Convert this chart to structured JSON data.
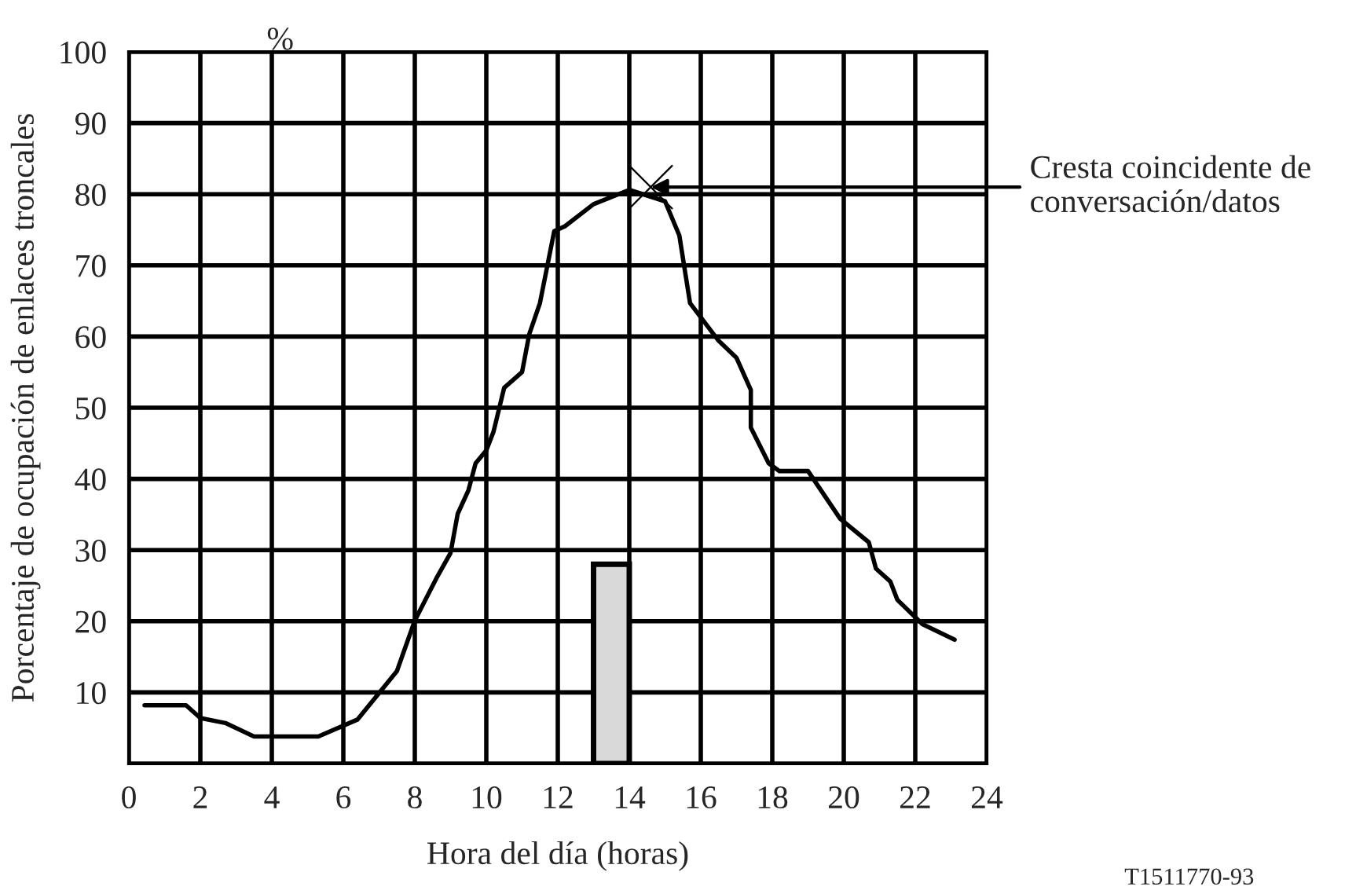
{
  "chart_data": {
    "type": "line",
    "xlabel": "Hora del día (horas)",
    "ylabel": "Porcentaje de ocupación de enlaces troncales",
    "xlim": [
      0,
      24
    ],
    "xticks": [
      0,
      2,
      4,
      6,
      8,
      10,
      12,
      14,
      16,
      18,
      20,
      22,
      24
    ],
    "ylim": [
      0,
      100
    ],
    "yticks": [
      {
        "value": 0,
        "label": null
      },
      10,
      20,
      30,
      40,
      50,
      60,
      70,
      80,
      90,
      100
    ],
    "grid": true,
    "series": [
      {
        "type": "bar",
        "color": "#d9d9d9",
        "x": [
          13.5
        ],
        "values": [
          28
        ]
      },
      {
        "color": "#000000",
        "x": [
          0.44,
          1.6,
          2.0,
          2.7,
          3.5,
          5.3,
          6.4,
          7.5,
          8.0,
          8.6,
          9.0,
          9.2,
          9.5,
          9.7,
          10.0,
          10.2,
          10.5,
          11.0,
          11.2,
          11.5,
          11.9,
          12.2,
          13.0,
          14.0,
          15.0,
          15.4,
          15.7,
          16.5,
          17.0,
          17.4,
          17.4,
          17.9,
          18.2,
          19.0,
          19.9,
          20.7,
          20.9,
          21.3,
          21.5,
          22.2,
          23.1
        ],
        "values": [
          8.2,
          8.2,
          6.4,
          5.7,
          3.8,
          3.8,
          6.2,
          13.0,
          20.1,
          26.0,
          29.6,
          35.1,
          38.4,
          42.2,
          44.0,
          46.6,
          52.8,
          55.0,
          60.3,
          64.7,
          74.8,
          75.5,
          78.6,
          80.6,
          79.0,
          74.2,
          64.7,
          59.4,
          57.0,
          52.5,
          47.2,
          42.2,
          41.1,
          41.1,
          34.4,
          31.1,
          27.4,
          25.6,
          23.0,
          19.6,
          17.4
        ]
      }
    ],
    "annotations": [
      {
        "text": "Cresta coincidente de\nconversación/datos",
        "x": 14.6,
        "y": 81
      },
      "%",
      "T1511770-93"
    ]
  }
}
